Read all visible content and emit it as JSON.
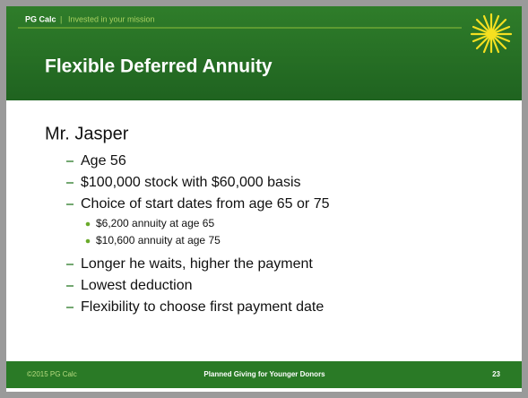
{
  "header": {
    "brand": "PG Calc",
    "separator": "|",
    "tagline": "Invested in your mission"
  },
  "title": "Flexible Deferred Annuity",
  "body": {
    "heading": "Mr. Jasper",
    "items": [
      {
        "text": "Age 56"
      },
      {
        "text": "$100,000 stock with $60,000 basis"
      },
      {
        "text": "Choice of start dates from age 65 or 75",
        "subitems": [
          "$6,200 annuity at age 65",
          "$10,600 annuity at age 75"
        ]
      },
      {
        "text": "Longer he waits, higher the payment"
      },
      {
        "text": "Lowest deduction"
      },
      {
        "text": "Flexibility to choose first payment date"
      }
    ]
  },
  "footer": {
    "left": "©2015 PG Calc",
    "center": "Planned Giving for Younger Donors",
    "page": "23"
  }
}
